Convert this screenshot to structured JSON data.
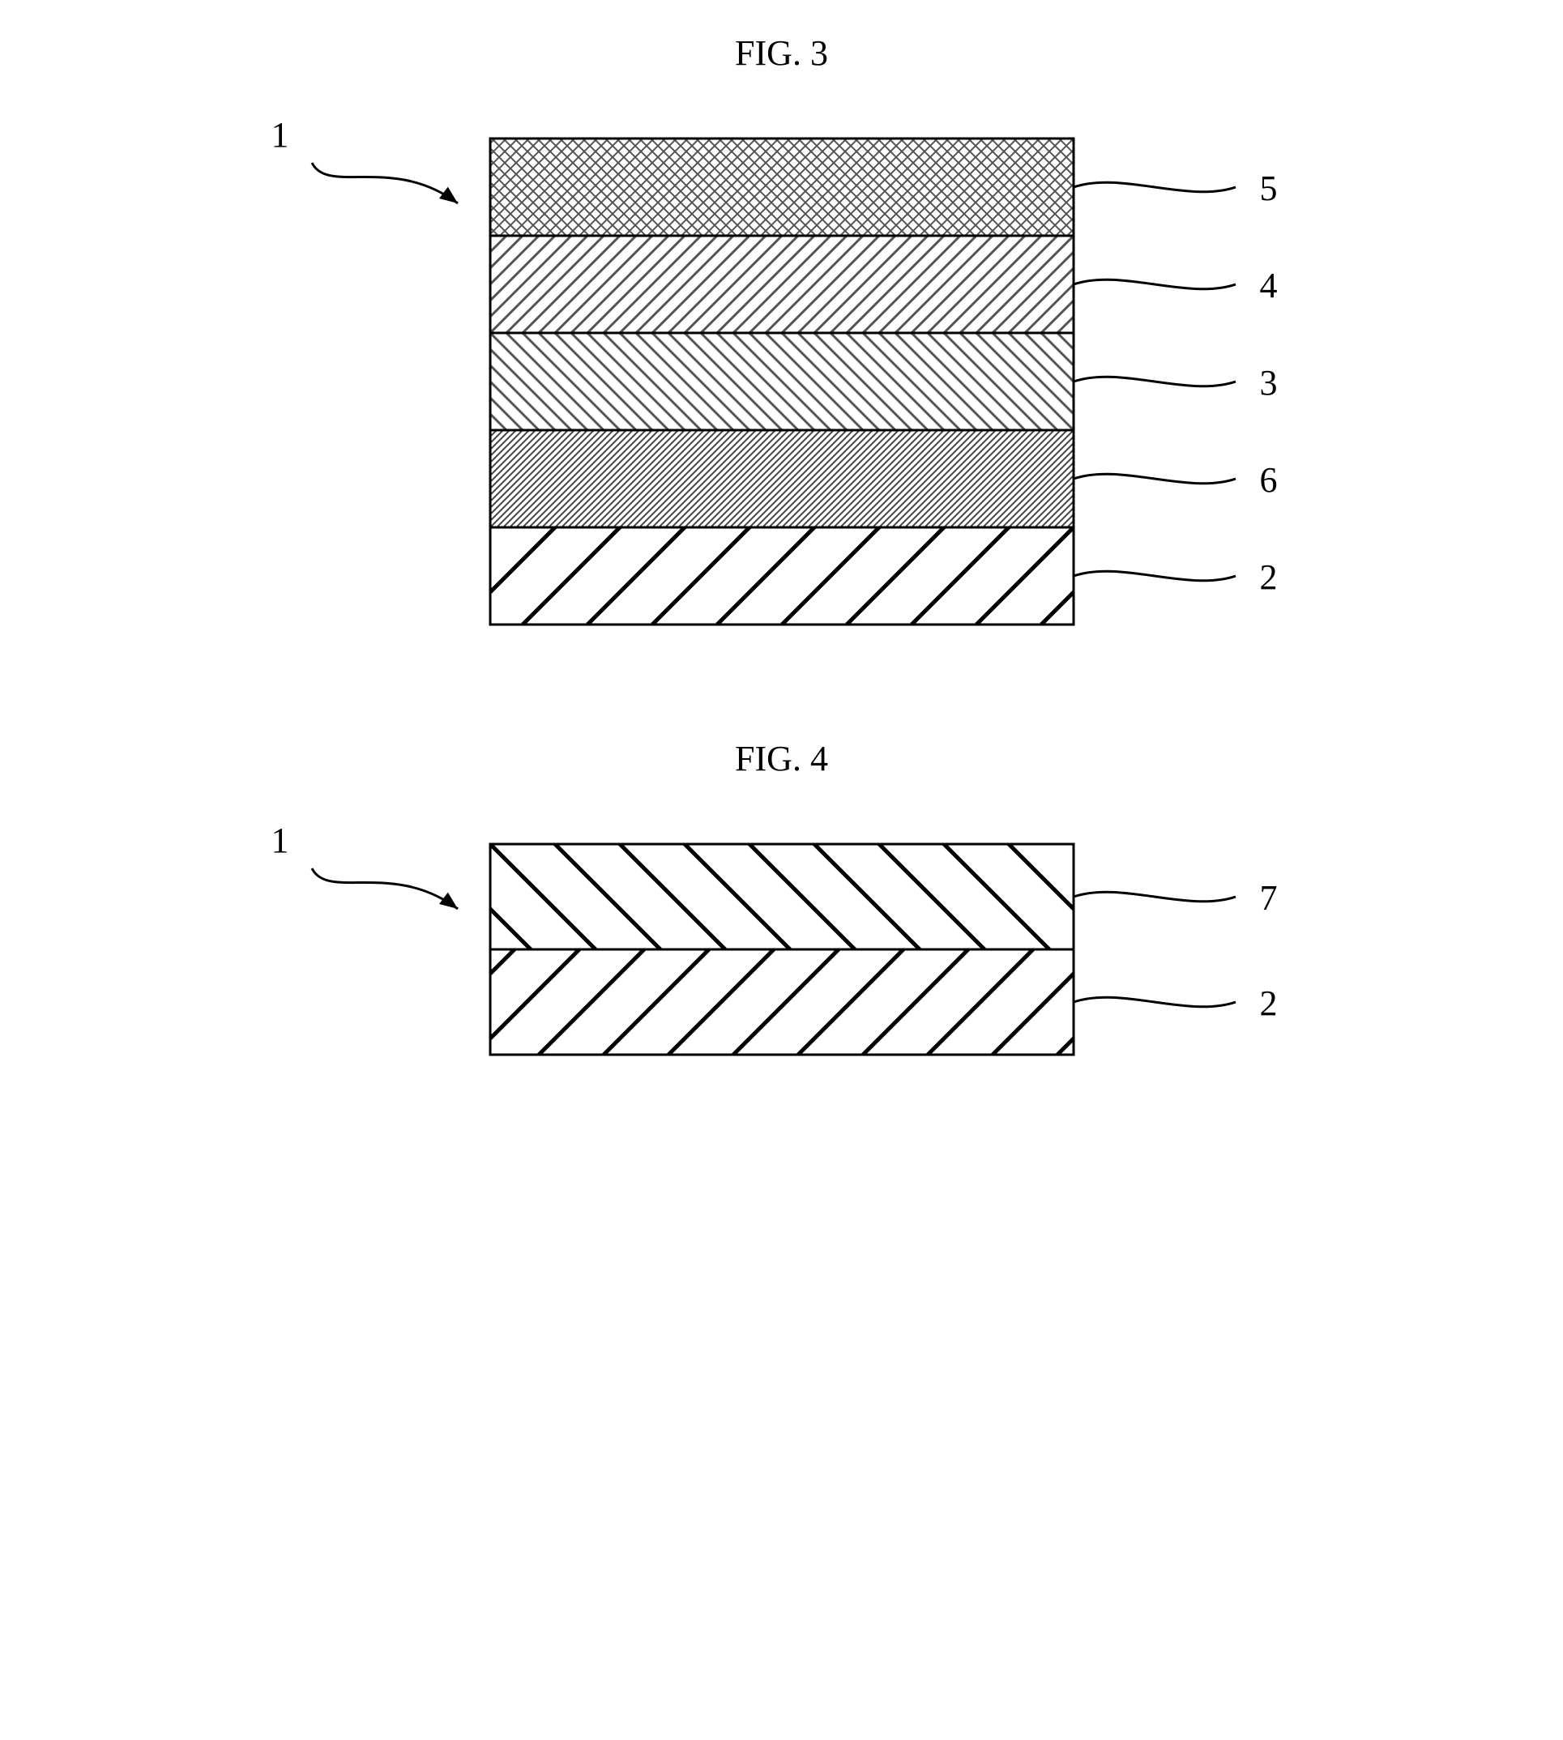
{
  "fig3": {
    "title": "FIG. 3",
    "assembly_label": "1",
    "layers": [
      {
        "label": "5",
        "pattern": "crosshatch",
        "fill": "#8a8a8a",
        "height": 120
      },
      {
        "label": "4",
        "pattern": "diag-ne",
        "fill": "#7a7a7a",
        "height": 120
      },
      {
        "label": "3",
        "pattern": "diag-nw",
        "fill": "#7a7a7a",
        "height": 120
      },
      {
        "label": "6",
        "pattern": "diag-ne-fine",
        "fill": "#6a6a6a",
        "height": 120
      },
      {
        "label": "2",
        "pattern": "diag-ne-wide",
        "fill": "#000000",
        "height": 120
      }
    ],
    "stack_width": 720,
    "stroke": "#000000",
    "bg": "#ffffff"
  },
  "fig4": {
    "title": "FIG. 4",
    "assembly_label": "1",
    "layers": [
      {
        "label": "7",
        "pattern": "diag-nw-wide",
        "fill": "#000000",
        "height": 130
      },
      {
        "label": "2",
        "pattern": "diag-ne-wide",
        "fill": "#000000",
        "height": 130
      }
    ],
    "stack_width": 720,
    "stroke": "#000000",
    "bg": "#ffffff"
  },
  "style": {
    "title_fontsize": 44,
    "label_fontsize": 44,
    "line_width": 3,
    "layer_border_width": 3
  }
}
